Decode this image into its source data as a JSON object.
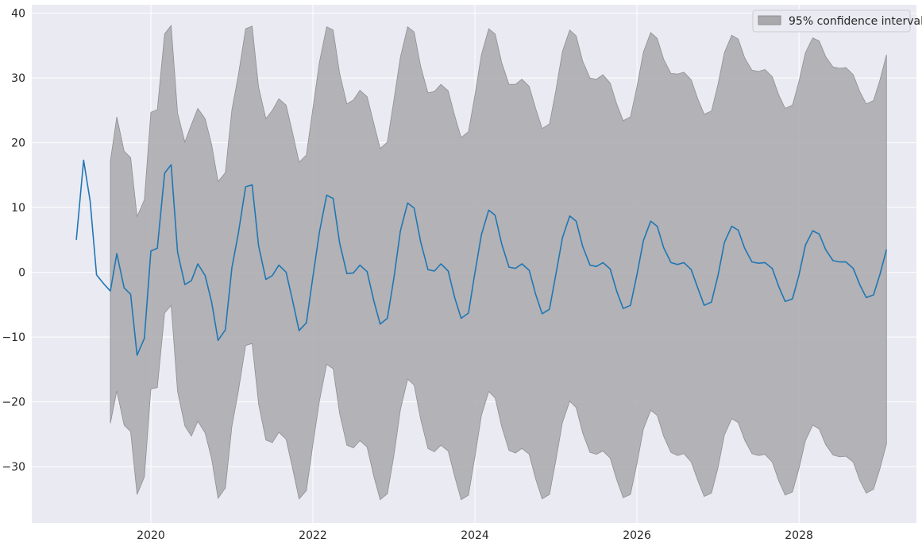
{
  "chart_data": {
    "type": "line",
    "title": "",
    "xlabel": "",
    "ylabel": "",
    "grid": true,
    "legend_position": "top-right",
    "xlim": [
      2018.53,
      2029.45
    ],
    "ylim": [
      -38.7,
      41.3
    ],
    "xticks": [
      2020,
      2022,
      2024,
      2026,
      2028
    ],
    "xtick_labels": [
      "2020",
      "2022",
      "2024",
      "2026",
      "2028"
    ],
    "yticks": [
      -30,
      -20,
      -10,
      0,
      10,
      20,
      30,
      40
    ],
    "ytick_labels": [
      "−30",
      "−20",
      "−10",
      "0",
      "10",
      "20",
      "30",
      "40"
    ],
    "colors": {
      "line": "#1f77b4",
      "band_fill": "#a9a8ac",
      "band_edge": "#8f8e92",
      "plot_bg": "#eaeaf2",
      "grid": "#ffffff"
    },
    "series": [
      {
        "x": [
          2019.08,
          2019.17,
          2019.25,
          2019.33,
          2019.42,
          2019.5,
          2019.58,
          2019.67,
          2019.75,
          2019.83,
          2019.92,
          2020.0,
          2020.08,
          2020.17,
          2020.25,
          2020.33,
          2020.42,
          2020.5,
          2020.58,
          2020.67,
          2020.75,
          2020.83,
          2020.92,
          2021.0,
          2021.08,
          2021.17,
          2021.25,
          2021.33,
          2021.42,
          2021.5,
          2021.58,
          2021.67,
          2021.75,
          2021.83,
          2021.92,
          2022.0,
          2022.08,
          2022.17,
          2022.25,
          2022.33,
          2022.42,
          2022.5,
          2022.58,
          2022.67,
          2022.75,
          2022.83,
          2022.92,
          2023.0,
          2023.08,
          2023.17,
          2023.25,
          2023.33,
          2023.42,
          2023.5,
          2023.58,
          2023.67,
          2023.75,
          2023.83,
          2023.92,
          2024.0,
          2024.08,
          2024.17,
          2024.25,
          2024.33,
          2024.42,
          2024.5,
          2024.58,
          2024.67,
          2024.75,
          2024.83,
          2024.92,
          2025.0,
          2025.08,
          2025.17,
          2025.25,
          2025.33,
          2025.42,
          2025.5,
          2025.58,
          2025.67,
          2025.75,
          2025.83,
          2025.92,
          2026.0,
          2026.08,
          2026.17,
          2026.25,
          2026.33,
          2026.42,
          2026.5,
          2026.58,
          2026.67,
          2026.75,
          2026.83,
          2026.92,
          2027.0,
          2027.08,
          2027.17,
          2027.25,
          2027.33,
          2027.42,
          2027.5,
          2027.58,
          2027.67,
          2027.75,
          2027.83,
          2027.92,
          2028.0,
          2028.08,
          2028.17,
          2028.25,
          2028.33,
          2028.42,
          2028.5,
          2028.58,
          2028.67,
          2028.75,
          2028.83,
          2028.92,
          2029.0,
          2029.08
        ],
        "y": [
          5.0,
          17.3,
          11.0,
          -0.4,
          -1.8,
          -2.9,
          2.9,
          -2.4,
          -3.4,
          -12.8,
          -10.2,
          3.3,
          3.7,
          15.3,
          16.6,
          3.1,
          -1.9,
          -1.3,
          1.3,
          -0.5,
          -4.6,
          -10.5,
          -8.9,
          0.7,
          6.0,
          13.2,
          13.5,
          4.1,
          -1.1,
          -0.5,
          1.1,
          0.0,
          -4.4,
          -9.0,
          -7.8,
          -0.7,
          6.2,
          11.9,
          11.4,
          4.5,
          -0.2,
          -0.1,
          1.1,
          0.1,
          -4.3,
          -8.0,
          -7.1,
          -0.9,
          6.4,
          10.7,
          9.9,
          4.7,
          0.4,
          0.2,
          1.3,
          0.2,
          -3.9,
          -7.1,
          -6.3,
          -0.1,
          5.8,
          9.6,
          8.8,
          4.4,
          0.8,
          0.6,
          1.3,
          0.3,
          -3.4,
          -6.4,
          -5.7,
          -0.3,
          5.3,
          8.7,
          7.9,
          4.0,
          1.1,
          0.9,
          1.5,
          0.5,
          -2.9,
          -5.6,
          -5.1,
          -0.4,
          4.9,
          7.9,
          7.1,
          3.8,
          1.5,
          1.2,
          1.5,
          0.4,
          -2.4,
          -5.1,
          -4.6,
          -0.5,
          4.6,
          7.1,
          6.5,
          3.7,
          1.6,
          1.4,
          1.5,
          0.6,
          -2.2,
          -4.5,
          -4.1,
          -0.4,
          4.2,
          6.4,
          5.9,
          3.5,
          1.8,
          1.6,
          1.6,
          0.6,
          -1.9,
          -3.9,
          -3.5,
          -0.3,
          3.5
        ]
      },
      {
        "name": "95% confidence interval",
        "x": [
          2019.5,
          2019.58,
          2019.67,
          2019.75,
          2019.83,
          2019.92,
          2020.0,
          2020.08,
          2020.17,
          2020.25,
          2020.33,
          2020.42,
          2020.5,
          2020.58,
          2020.67,
          2020.75,
          2020.83,
          2020.92,
          2021.0,
          2021.08,
          2021.17,
          2021.25,
          2021.33,
          2021.42,
          2021.5,
          2021.58,
          2021.67,
          2021.75,
          2021.83,
          2021.92,
          2022.0,
          2022.08,
          2022.17,
          2022.25,
          2022.33,
          2022.42,
          2022.5,
          2022.58,
          2022.67,
          2022.75,
          2022.83,
          2022.92,
          2023.0,
          2023.08,
          2023.17,
          2023.25,
          2023.33,
          2023.42,
          2023.5,
          2023.58,
          2023.67,
          2023.75,
          2023.83,
          2023.92,
          2024.0,
          2024.08,
          2024.17,
          2024.25,
          2024.33,
          2024.42,
          2024.5,
          2024.58,
          2024.67,
          2024.75,
          2024.83,
          2024.92,
          2025.0,
          2025.08,
          2025.17,
          2025.25,
          2025.33,
          2025.42,
          2025.5,
          2025.58,
          2025.67,
          2025.75,
          2025.83,
          2025.92,
          2026.0,
          2026.08,
          2026.17,
          2026.25,
          2026.33,
          2026.42,
          2026.5,
          2026.58,
          2026.67,
          2026.75,
          2026.83,
          2026.92,
          2027.0,
          2027.08,
          2027.17,
          2027.25,
          2027.33,
          2027.42,
          2027.5,
          2027.58,
          2027.67,
          2027.75,
          2027.83,
          2027.92,
          2028.0,
          2028.08,
          2028.17,
          2028.25,
          2028.33,
          2028.42,
          2028.5,
          2028.58,
          2028.67,
          2028.75,
          2028.83,
          2028.92,
          2029.0,
          2029.08
        ],
        "upper": [
          17.2,
          24.0,
          18.7,
          17.7,
          8.6,
          11.2,
          24.7,
          25.1,
          36.8,
          38.1,
          24.6,
          20.1,
          22.8,
          25.3,
          23.7,
          19.7,
          14.0,
          15.4,
          25.1,
          30.4,
          37.6,
          38.0,
          28.6,
          23.7,
          25.0,
          26.8,
          25.8,
          21.5,
          17.0,
          18.1,
          25.3,
          32.4,
          37.9,
          37.4,
          30.7,
          26.0,
          26.6,
          28.1,
          27.1,
          23.1,
          19.1,
          20.1,
          26.6,
          33.2,
          37.9,
          37.1,
          31.8,
          27.7,
          27.9,
          29.0,
          28.0,
          24.2,
          20.8,
          21.7,
          27.3,
          33.6,
          37.6,
          36.8,
          32.4,
          29.0,
          29.0,
          29.8,
          28.7,
          25.3,
          22.2,
          22.9,
          28.1,
          34.1,
          37.4,
          36.5,
          32.6,
          30.0,
          29.8,
          30.5,
          29.2,
          26.0,
          23.4,
          24.0,
          28.6,
          34.0,
          37.0,
          36.1,
          32.9,
          30.7,
          30.6,
          30.9,
          29.7,
          26.8,
          24.4,
          24.9,
          29.0,
          33.9,
          36.6,
          36.0,
          33.1,
          31.2,
          31.0,
          31.3,
          30.2,
          27.4,
          25.3,
          25.8,
          29.5,
          33.9,
          36.2,
          35.7,
          33.3,
          31.7,
          31.5,
          31.6,
          30.5,
          27.9,
          26.0,
          26.5,
          29.7,
          33.6
        ],
        "lower": [
          -23.3,
          -18.3,
          -23.6,
          -24.6,
          -34.3,
          -31.6,
          -18.0,
          -17.8,
          -6.3,
          -5.1,
          -18.4,
          -23.7,
          -25.3,
          -23.0,
          -24.8,
          -28.8,
          -34.9,
          -33.3,
          -23.8,
          -18.4,
          -11.3,
          -11.0,
          -20.3,
          -25.9,
          -26.3,
          -24.7,
          -25.8,
          -30.3,
          -35.0,
          -33.7,
          -26.6,
          -19.9,
          -14.2,
          -14.9,
          -21.8,
          -26.7,
          -27.1,
          -26.0,
          -27.0,
          -31.4,
          -35.1,
          -34.2,
          -28.3,
          -21.2,
          -16.5,
          -17.4,
          -22.7,
          -27.2,
          -27.7,
          -26.7,
          -27.6,
          -31.5,
          -35.1,
          -34.4,
          -28.5,
          -22.1,
          -18.4,
          -19.4,
          -23.8,
          -27.5,
          -27.9,
          -27.2,
          -28.1,
          -31.9,
          -35.0,
          -34.3,
          -29.0,
          -23.2,
          -19.9,
          -20.9,
          -24.8,
          -27.8,
          -28.1,
          -27.6,
          -28.7,
          -32.0,
          -34.8,
          -34.3,
          -29.6,
          -24.2,
          -21.3,
          -22.1,
          -25.3,
          -27.8,
          -28.3,
          -28.0,
          -29.3,
          -32.1,
          -34.6,
          -34.1,
          -30.2,
          -25.1,
          -22.6,
          -23.2,
          -25.9,
          -28.0,
          -28.3,
          -28.1,
          -29.3,
          -32.2,
          -34.4,
          -33.9,
          -30.3,
          -26.0,
          -23.6,
          -24.2,
          -26.6,
          -28.2,
          -28.5,
          -28.4,
          -29.3,
          -32.1,
          -34.1,
          -33.5,
          -30.3,
          -26.5
        ]
      }
    ],
    "legend": [
      "95% confidence interval"
    ]
  }
}
